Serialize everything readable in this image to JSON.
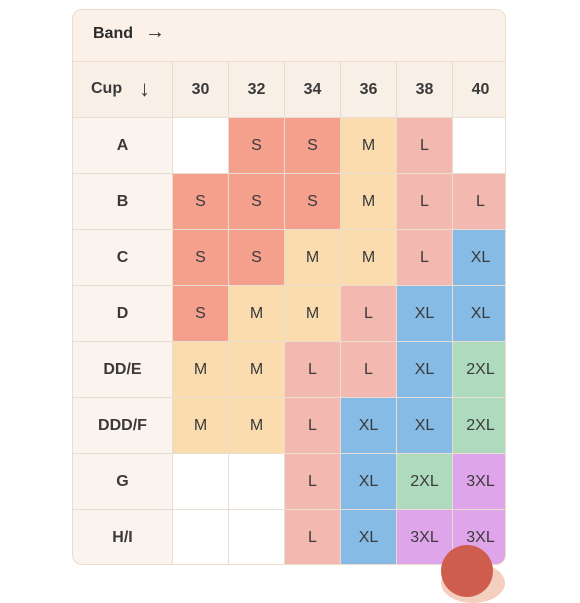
{
  "band": {
    "label": "Band",
    "arrow": "→"
  },
  "cup": {
    "label": "Cup",
    "arrow": "↓"
  },
  "band_sizes": [
    "30",
    "32",
    "34",
    "36",
    "38",
    "40",
    ""
  ],
  "rows": [
    {
      "cup": "A",
      "sizes": [
        "",
        "S",
        "S",
        "M",
        "L",
        "",
        ""
      ]
    },
    {
      "cup": "B",
      "sizes": [
        "S",
        "S",
        "S",
        "M",
        "L",
        "L",
        ""
      ]
    },
    {
      "cup": "C",
      "sizes": [
        "S",
        "S",
        "M",
        "M",
        "L",
        "XL",
        ""
      ]
    },
    {
      "cup": "D",
      "sizes": [
        "S",
        "M",
        "M",
        "L",
        "XL",
        "XL",
        ""
      ]
    },
    {
      "cup": "DD/E",
      "sizes": [
        "M",
        "M",
        "L",
        "L",
        "XL",
        "2XL",
        ""
      ]
    },
    {
      "cup": "DDD/F",
      "sizes": [
        "M",
        "M",
        "L",
        "XL",
        "XL",
        "2XL",
        ""
      ]
    },
    {
      "cup": "G",
      "sizes": [
        "",
        "",
        "L",
        "XL",
        "2XL",
        "3XL",
        ""
      ]
    },
    {
      "cup": "H/I",
      "sizes": [
        "",
        "",
        "L",
        "XL",
        "3XL",
        "3XL",
        ""
      ]
    }
  ],
  "edge_colors": [
    "empty",
    "empty",
    "2XL",
    "2XL",
    "2XL",
    "3XL",
    "3XL",
    "3XL"
  ],
  "colors": {
    "S": "#f4a08d",
    "M": "#fbdcaf",
    "L": "#f3b9b0",
    "XL": "#86bbe6",
    "2XL": "#aedbbd",
    "3XL": "#dfa5ea",
    "header_bg": "#f8efe7",
    "accent": "#cf5d4e"
  }
}
